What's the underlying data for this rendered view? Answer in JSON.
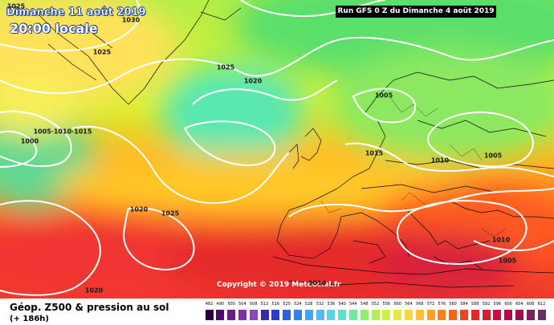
{
  "header": {
    "date": "Dimanche 11 août 2019",
    "time": "20:00 locale",
    "run": "Run GFS 0 Z du Dimanche 4 août 2019"
  },
  "copyright": "Copyright © 2019 Meteociel.fr",
  "isobar_labels": [
    {
      "text": "1025"
    },
    {
      "text": "1030"
    },
    {
      "text": "1025"
    },
    {
      "text": "1025"
    },
    {
      "text": "1020"
    },
    {
      "text": "1000"
    },
    {
      "text": "1005·1010·1015"
    },
    {
      "text": "1005"
    },
    {
      "text": "1015"
    },
    {
      "text": "1010"
    },
    {
      "text": "1005"
    },
    {
      "text": "1020"
    },
    {
      "text": "1025"
    },
    {
      "text": "1010"
    },
    {
      "text": "1005"
    },
    {
      "text": "1010"
    },
    {
      "text": "1020"
    }
  ],
  "legend": {
    "title": "Géop. Z500 & pression au sol",
    "hours": "(+ 186h)",
    "ticks": [
      "482",
      "490",
      "500",
      "504",
      "508",
      "512",
      "516",
      "520",
      "524",
      "528",
      "532",
      "536",
      "540",
      "544",
      "548",
      "552",
      "556",
      "560",
      "564",
      "568",
      "572",
      "576",
      "580",
      "584",
      "588",
      "592",
      "596",
      "600",
      "604",
      "608",
      "612"
    ],
    "colors": [
      "#2a0040",
      "#4b0a6b",
      "#6a1b8a",
      "#7f2fa6",
      "#8e44b8",
      "#3d2aa0",
      "#2b3fc0",
      "#2f5fd6",
      "#3a7fe8",
      "#4a9ff0",
      "#5ab8f0",
      "#60d0e8",
      "#5fe0c8",
      "#70e8a0",
      "#90ee70",
      "#b2f050",
      "#d0f040",
      "#e8e840",
      "#f8d838",
      "#ffbf30",
      "#ffa028",
      "#ff8020",
      "#ff6020",
      "#f84020",
      "#e82828",
      "#d81c30",
      "#c81040",
      "#b00848",
      "#981050",
      "#802058",
      "#683060"
    ]
  }
}
